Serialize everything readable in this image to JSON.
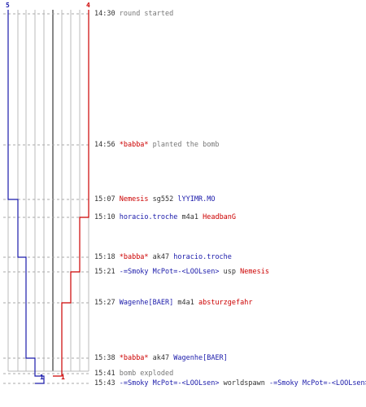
{
  "colors": {
    "team_blue": "#1a1aaa",
    "team_red": "#cc0000",
    "grid": "#bbbbbb",
    "center": "#555555",
    "dashes": "#aaaaaa",
    "time": "#777777"
  },
  "score": {
    "blue_start": "5",
    "red_start": "4",
    "blue_end": "1",
    "red_end": "1"
  },
  "events": [
    {
      "time": "14:30",
      "parts": [
        {
          "text": "round started",
          "style": "t"
        }
      ]
    },
    {
      "time": "14:56",
      "parts": [
        {
          "text": "*babba*",
          "style": "red"
        },
        {
          "text": " planted the bomb",
          "style": "t"
        }
      ]
    },
    {
      "time": "15:07",
      "parts": [
        {
          "text": "Nemesis",
          "style": "red"
        },
        {
          "text": " sg552 ",
          "style": "plain"
        },
        {
          "text": "lYYIMR.MO",
          "style": "blue"
        }
      ]
    },
    {
      "time": "15:10",
      "parts": [
        {
          "text": "horacio.troche",
          "style": "blue"
        },
        {
          "text": " m4a1 ",
          "style": "plain"
        },
        {
          "text": "HeadbanG",
          "style": "red"
        }
      ]
    },
    {
      "time": "15:18",
      "parts": [
        {
          "text": "*babba*",
          "style": "red"
        },
        {
          "text": " ak47 ",
          "style": "plain"
        },
        {
          "text": "horacio.troche",
          "style": "blue"
        }
      ]
    },
    {
      "time": "15:21",
      "parts": [
        {
          "text": "-=Smoky McPot=-<LOOLsen>",
          "style": "blue"
        },
        {
          "text": " usp ",
          "style": "plain"
        },
        {
          "text": "Nemesis",
          "style": "red"
        }
      ]
    },
    {
      "time": "15:27",
      "parts": [
        {
          "text": "Wagenhe[BAER]",
          "style": "blue"
        },
        {
          "text": " m4a1 ",
          "style": "plain"
        },
        {
          "text": "absturzgefahr",
          "style": "red"
        }
      ]
    },
    {
      "time": "15:38",
      "parts": [
        {
          "text": "*babba*",
          "style": "red"
        },
        {
          "text": " ak47 ",
          "style": "plain"
        },
        {
          "text": "Wagenhe[BAER]",
          "style": "blue"
        }
      ]
    },
    {
      "time": "15:41",
      "parts": [
        {
          "text": "bomb exploded",
          "style": "t"
        }
      ]
    },
    {
      "time": "15:43",
      "parts": [
        {
          "text": "-=Smoky McPot=-<LOOLsen>",
          "style": "blue"
        },
        {
          "text": " worldspawn ",
          "style": "plain"
        },
        {
          "text": "-=Smoky McPot=-<LOOLsen>",
          "style": "blue"
        }
      ]
    }
  ]
}
